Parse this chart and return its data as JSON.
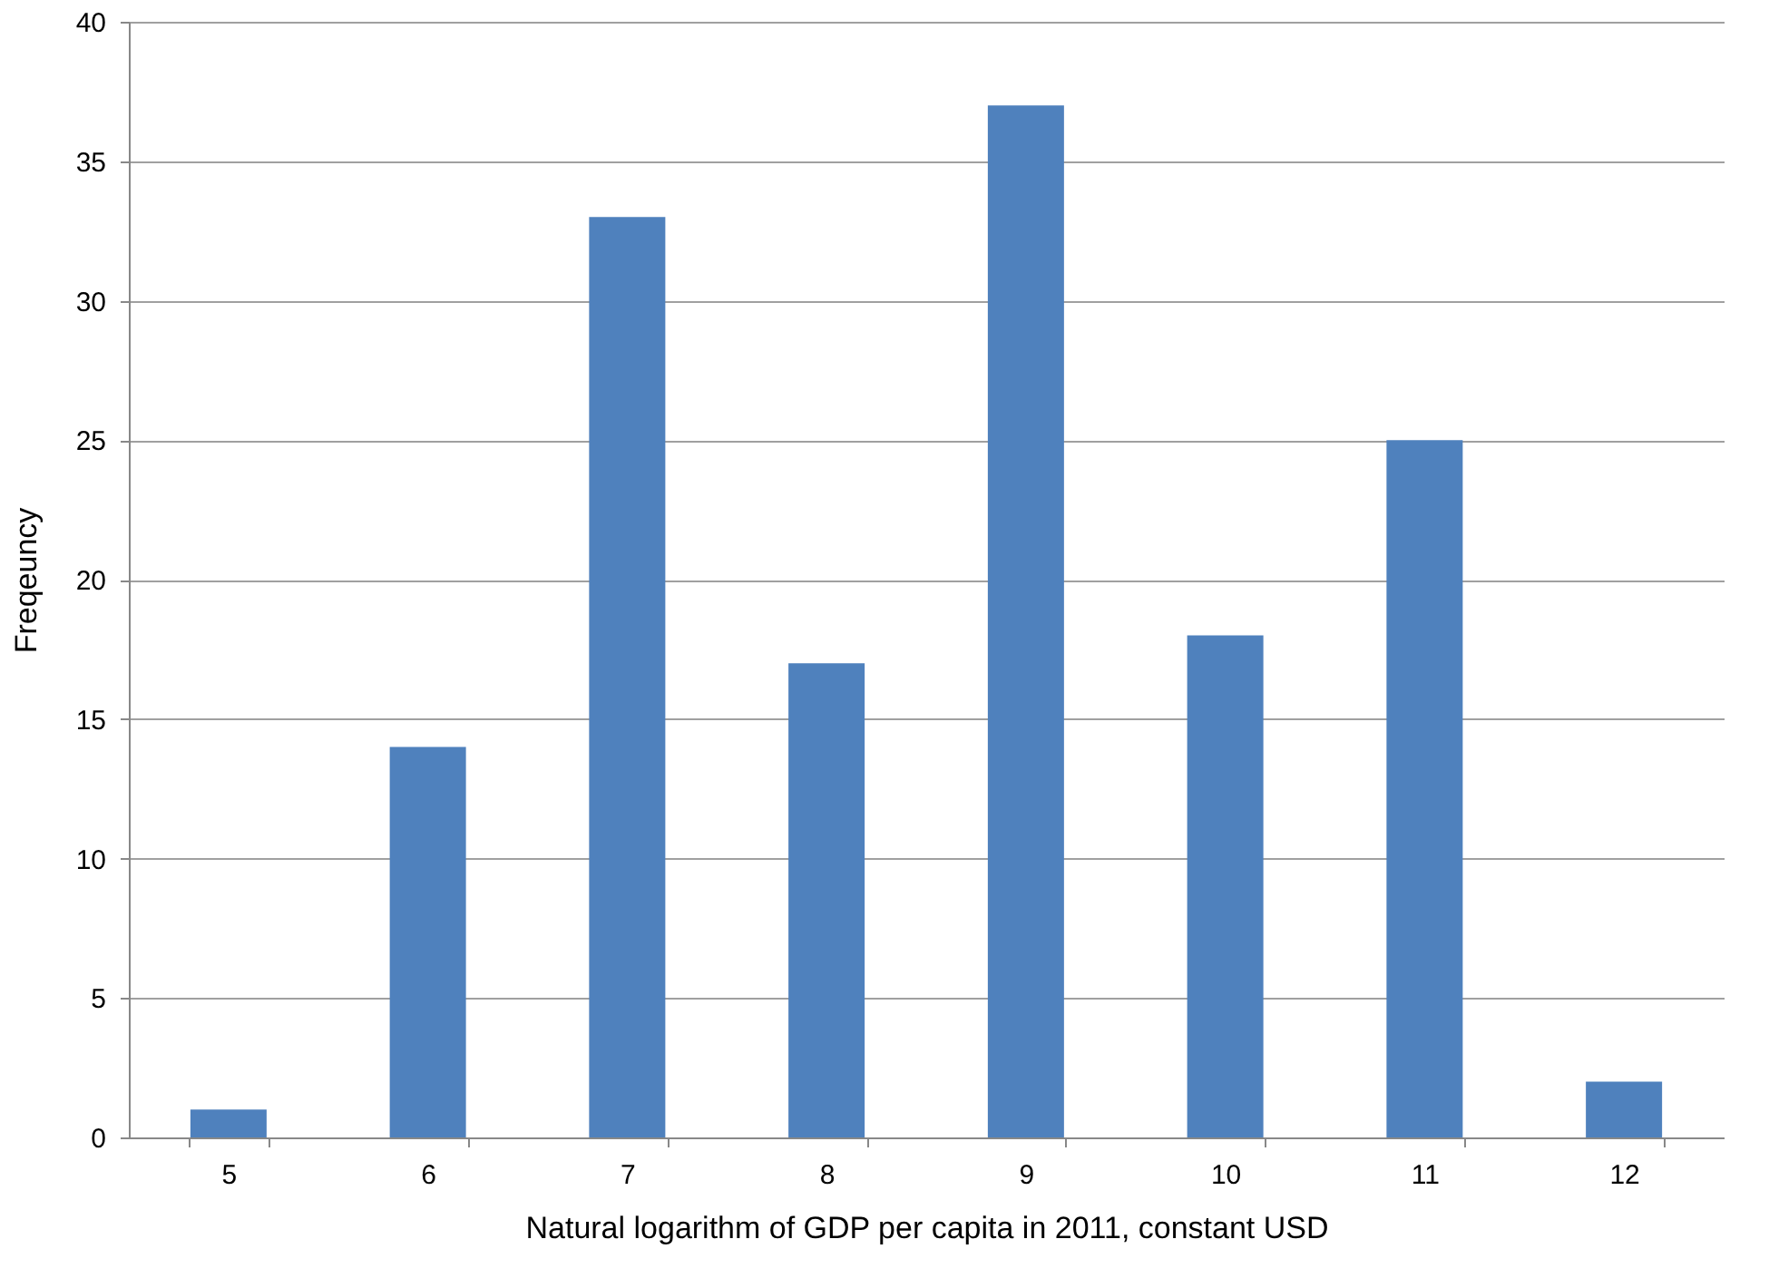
{
  "chart_data": {
    "type": "bar",
    "xlabel": "Natural logarithm of GDP per capita in 2011, constant USD",
    "ylabel": "Freqeuncy",
    "categories": [
      "5",
      "6",
      "7",
      "8",
      "9",
      "10",
      "11",
      "12"
    ],
    "values": [
      1,
      14,
      33,
      17,
      37,
      18,
      25,
      2
    ],
    "color": "#4f81bd",
    "ylim": [
      0,
      40
    ],
    "yticks": [
      0,
      5,
      10,
      15,
      20,
      25,
      30,
      35,
      40
    ],
    "grid": "y"
  }
}
